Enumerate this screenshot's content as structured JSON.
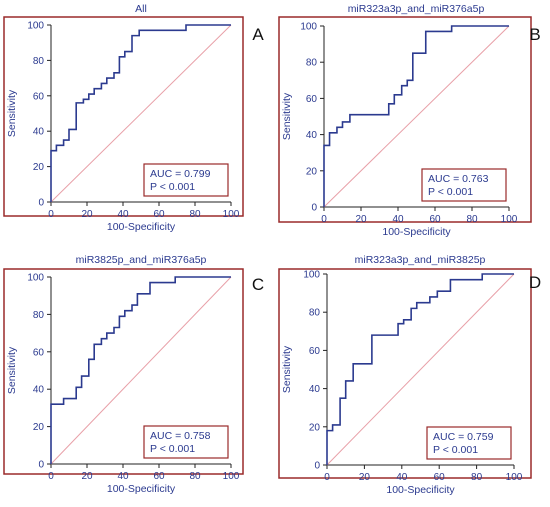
{
  "colors": {
    "frame": "#9a2a2a",
    "curve": "#2b3a8f",
    "diagonal": "#e8a0a8",
    "text": "#2b3a8f",
    "axis": "#222222"
  },
  "chart_data": [
    {
      "type": "line",
      "panel_label": "A",
      "title": "All",
      "xlabel": "100-Specificity",
      "ylabel": "Sensitivity",
      "xlim": [
        0,
        100
      ],
      "ylim": [
        0,
        100
      ],
      "xticks": [
        "0",
        "20",
        "40",
        "60",
        "80",
        "100"
      ],
      "yticks": [
        "0",
        "20",
        "40",
        "60",
        "80",
        "100"
      ],
      "grid": false,
      "annotation_lines": [
        "AUC = 0.799",
        "P < 0.001"
      ],
      "annotation_position": "bottom-right",
      "series": [
        {
          "x": [
            0,
            0,
            3,
            3,
            7,
            7,
            10,
            10,
            14,
            14,
            18,
            18,
            21,
            21,
            24,
            24,
            28,
            28,
            31,
            31,
            35,
            35,
            38,
            38,
            41,
            41,
            45,
            45,
            49,
            49,
            75,
            75,
            100
          ],
          "y": [
            0,
            29,
            29,
            32,
            32,
            35,
            35,
            41,
            41,
            56,
            56,
            58,
            58,
            61,
            61,
            64,
            64,
            67,
            67,
            70,
            70,
            73,
            73,
            82,
            82,
            85,
            85,
            94,
            94,
            97,
            97,
            100,
            100
          ]
        }
      ],
      "diagonal": [
        [
          0,
          0
        ],
        [
          100,
          100
        ]
      ]
    },
    {
      "type": "line",
      "panel_label": "B",
      "title": "miR323a3p_and_miR376a5p",
      "xlabel": "100-Specificity",
      "ylabel": "Sensitivity",
      "xlim": [
        0,
        100
      ],
      "ylim": [
        0,
        100
      ],
      "xticks": [
        "0",
        "20",
        "40",
        "60",
        "80",
        "100"
      ],
      "yticks": [
        "0",
        "20",
        "40",
        "60",
        "80",
        "100"
      ],
      "grid": false,
      "annotation_lines": [
        "AUC = 0.763",
        "P < 0.001"
      ],
      "annotation_position": "bottom-right",
      "series": [
        {
          "x": [
            0,
            0,
            3,
            3,
            7,
            7,
            10,
            10,
            14,
            14,
            24,
            24,
            35,
            35,
            38,
            38,
            42,
            42,
            45,
            45,
            48,
            48,
            55,
            55,
            69,
            69,
            100
          ],
          "y": [
            0,
            34,
            34,
            41,
            41,
            44,
            44,
            47,
            47,
            51,
            51,
            51,
            51,
            57,
            57,
            62,
            62,
            67,
            67,
            70,
            70,
            85,
            85,
            97,
            97,
            100,
            100
          ]
        }
      ],
      "diagonal": [
        [
          0,
          0
        ],
        [
          100,
          100
        ]
      ]
    },
    {
      "type": "line",
      "panel_label": "C",
      "title": "miR3825p_and_miR376a5p",
      "xlabel": "100-Specificity",
      "ylabel": "Sensitivity",
      "xlim": [
        0,
        100
      ],
      "ylim": [
        0,
        100
      ],
      "xticks": [
        "0",
        "20",
        "40",
        "60",
        "80",
        "100"
      ],
      "yticks": [
        "0",
        "20",
        "40",
        "60",
        "80",
        "100"
      ],
      "grid": false,
      "annotation_lines": [
        "AUC = 0.758",
        "P < 0.001"
      ],
      "annotation_position": "bottom-right",
      "series": [
        {
          "x": [
            0,
            0,
            7,
            7,
            14,
            14,
            17,
            17,
            21,
            21,
            24,
            24,
            28,
            28,
            31,
            31,
            35,
            35,
            38,
            38,
            41,
            41,
            45,
            45,
            48,
            48,
            55,
            55,
            69,
            69,
            100
          ],
          "y": [
            0,
            32,
            32,
            35,
            35,
            41,
            41,
            47,
            47,
            56,
            56,
            64,
            64,
            67,
            67,
            70,
            70,
            73,
            73,
            79,
            79,
            82,
            82,
            85,
            85,
            91,
            91,
            97,
            97,
            100,
            100
          ]
        }
      ],
      "diagonal": [
        [
          0,
          0
        ],
        [
          100,
          100
        ]
      ]
    },
    {
      "type": "line",
      "panel_label": "D",
      "title": "miR323a3p_and_miR3825p",
      "xlabel": "100-Specificity",
      "ylabel": "Sensitivity",
      "xlim": [
        0,
        100
      ],
      "ylim": [
        0,
        100
      ],
      "xticks": [
        "0",
        "20",
        "40",
        "60",
        "80",
        "100"
      ],
      "yticks": [
        "0",
        "20",
        "40",
        "60",
        "80",
        "100"
      ],
      "grid": false,
      "annotation_lines": [
        "AUC = 0.759",
        "P < 0.001"
      ],
      "annotation_position": "bottom-right",
      "series": [
        {
          "x": [
            0,
            0,
            3,
            3,
            7,
            7,
            10,
            10,
            14,
            14,
            17,
            17,
            24,
            24,
            38,
            38,
            41,
            41,
            45,
            45,
            48,
            48,
            55,
            55,
            59,
            59,
            66,
            66,
            83,
            83,
            100
          ],
          "y": [
            0,
            18,
            18,
            21,
            21,
            35,
            35,
            44,
            44,
            53,
            53,
            53,
            53,
            68,
            68,
            74,
            74,
            76,
            76,
            82,
            82,
            85,
            85,
            88,
            88,
            91,
            91,
            97,
            97,
            100,
            100
          ]
        }
      ],
      "diagonal": [
        [
          0,
          0
        ],
        [
          100,
          100
        ]
      ]
    }
  ]
}
